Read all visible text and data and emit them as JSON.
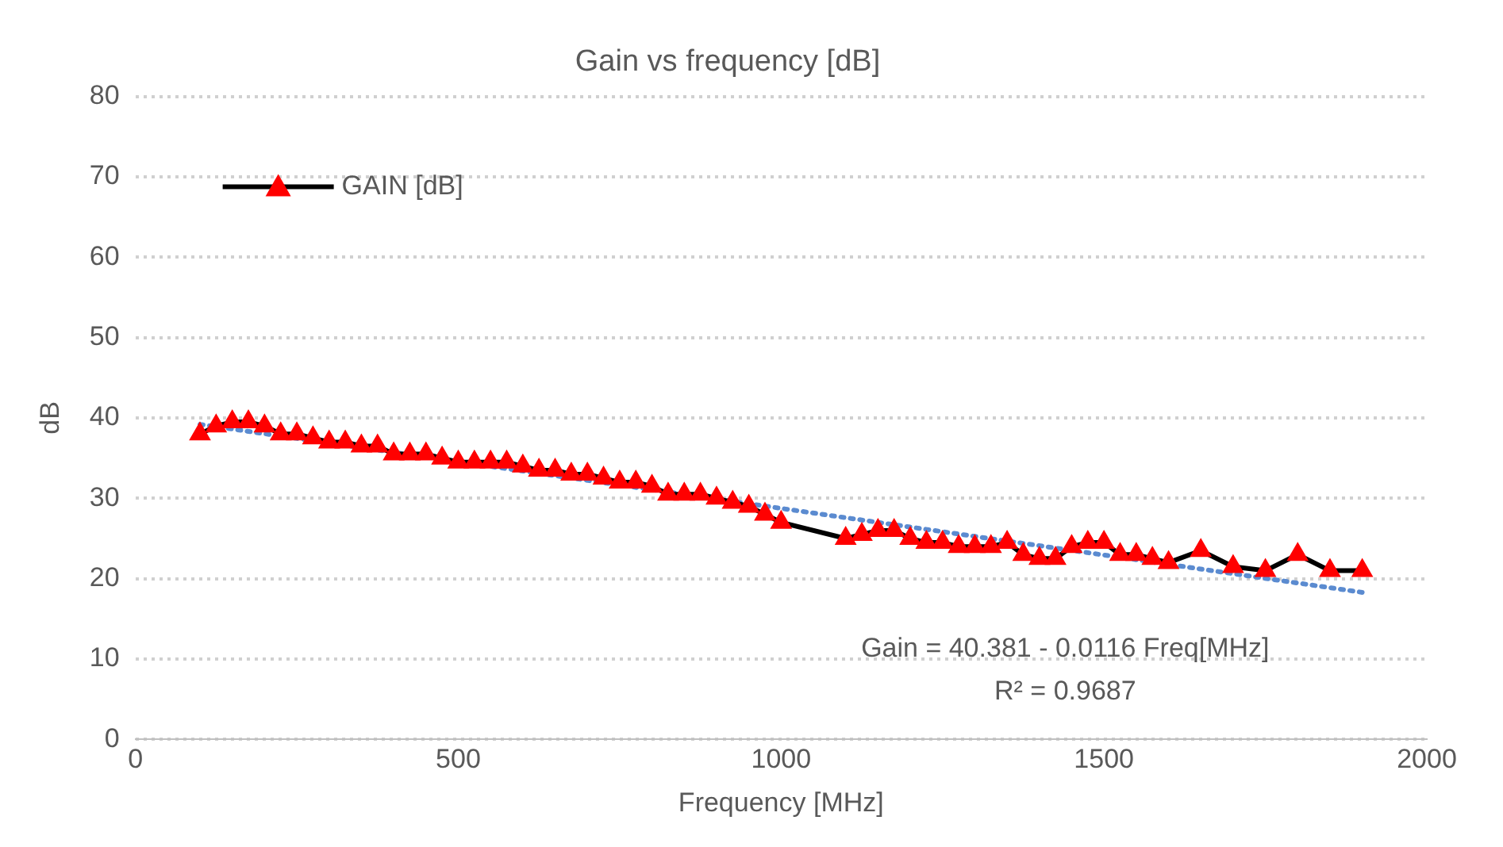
{
  "chart_data": {
    "type": "line",
    "title": "Gain vs frequency [dB]",
    "xlabel": "Frequency [MHz]",
    "ylabel": "dB",
    "xlim": [
      0,
      2000
    ],
    "xticks": [
      0,
      500,
      1000,
      1500,
      2000
    ],
    "ylim": [
      0,
      80
    ],
    "yticks": [
      0,
      10,
      20,
      30,
      40,
      50,
      60,
      70,
      80
    ],
    "grid": "y",
    "legend": "top left",
    "marker": "triangle",
    "series": [
      {
        "name": "GAIN [dB]",
        "color": "#ff0000",
        "x": [
          100,
          125,
          150,
          175,
          200,
          225,
          250,
          275,
          300,
          325,
          350,
          375,
          400,
          425,
          450,
          475,
          500,
          525,
          550,
          575,
          600,
          625,
          650,
          675,
          700,
          725,
          750,
          775,
          800,
          825,
          850,
          875,
          900,
          925,
          950,
          975,
          1000,
          1100,
          1125,
          1150,
          1175,
          1200,
          1225,
          1250,
          1275,
          1300,
          1325,
          1350,
          1375,
          1400,
          1425,
          1450,
          1475,
          1500,
          1525,
          1550,
          1575,
          1600,
          1650,
          1700,
          1750,
          1800,
          1850,
          1900
        ],
        "values": [
          38,
          39,
          39.5,
          39.5,
          39,
          38,
          38,
          37.5,
          37,
          37,
          36.5,
          36.5,
          35.5,
          35.5,
          35.5,
          35,
          34.5,
          34.5,
          34.5,
          34.5,
          34,
          33.5,
          33.5,
          33,
          33,
          32.5,
          32,
          32,
          31.5,
          30.5,
          30.5,
          30.5,
          30,
          29.5,
          29,
          28,
          27,
          25,
          25.5,
          26,
          26,
          25,
          24.5,
          24.5,
          24,
          24,
          24,
          24.5,
          23,
          22.5,
          22.5,
          24,
          24.5,
          24.5,
          23,
          23,
          22.5,
          22,
          23.5,
          21.5,
          21,
          23,
          21,
          21
        ]
      },
      {
        "type": "line",
        "color": "#5b8bd0",
        "line_style": "dotted",
        "marker": "none",
        "x": [
          100,
          1900
        ],
        "values": [
          39.2,
          18.3
        ]
      }
    ],
    "annotations": [
      "Gain = 40.381 - 0.0116 Freq[MHz]",
      "R² = 0.9687"
    ]
  }
}
